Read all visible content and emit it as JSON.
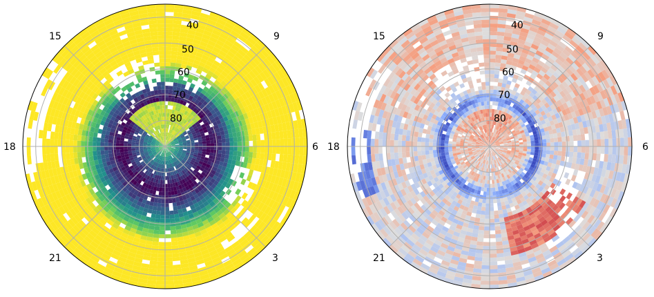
{
  "chart_data": [
    {
      "type": "heatmap",
      "projection": "polar",
      "colormap": "viridis",
      "title": "",
      "mlt_labels": [
        "6",
        "9",
        "15",
        "18",
        "21",
        "3"
      ],
      "lat_labels": [
        "40",
        "50",
        "60",
        "70",
        "80"
      ],
      "lat_values": [
        40,
        50,
        60,
        70,
        80
      ],
      "lat_range": [
        35,
        90
      ],
      "grid": true,
      "pattern": {
        "outer_band_color": "yellow (high values)",
        "mid_ring_color": "green / teal",
        "inner_ring_color": "dark purple (low values)",
        "data_gaps": "white patches near 12-15 MLT at high latitude and near 3-5 MLT"
      }
    },
    {
      "type": "heatmap",
      "projection": "polar",
      "colormap": "coolwarm (diverging blue-white-red)",
      "title": "",
      "mlt_labels": [
        "6",
        "9",
        "15",
        "18",
        "21",
        "3"
      ],
      "lat_labels": [
        "40",
        "50",
        "60",
        "70",
        "80"
      ],
      "lat_values": [
        40,
        50,
        60,
        70,
        80
      ],
      "lat_range": [
        35,
        90
      ],
      "grid": true,
      "pattern": {
        "blue_ring": "ring near 70-73 deg latitude, strongest on dawn (6 MLT) and dusk (18 MLT) sides",
        "red_regions": "around 1-3 MLT at 50-60 deg and at high latitude near 12 MLT",
        "data_gaps": "white patches similar to left panel"
      }
    }
  ]
}
